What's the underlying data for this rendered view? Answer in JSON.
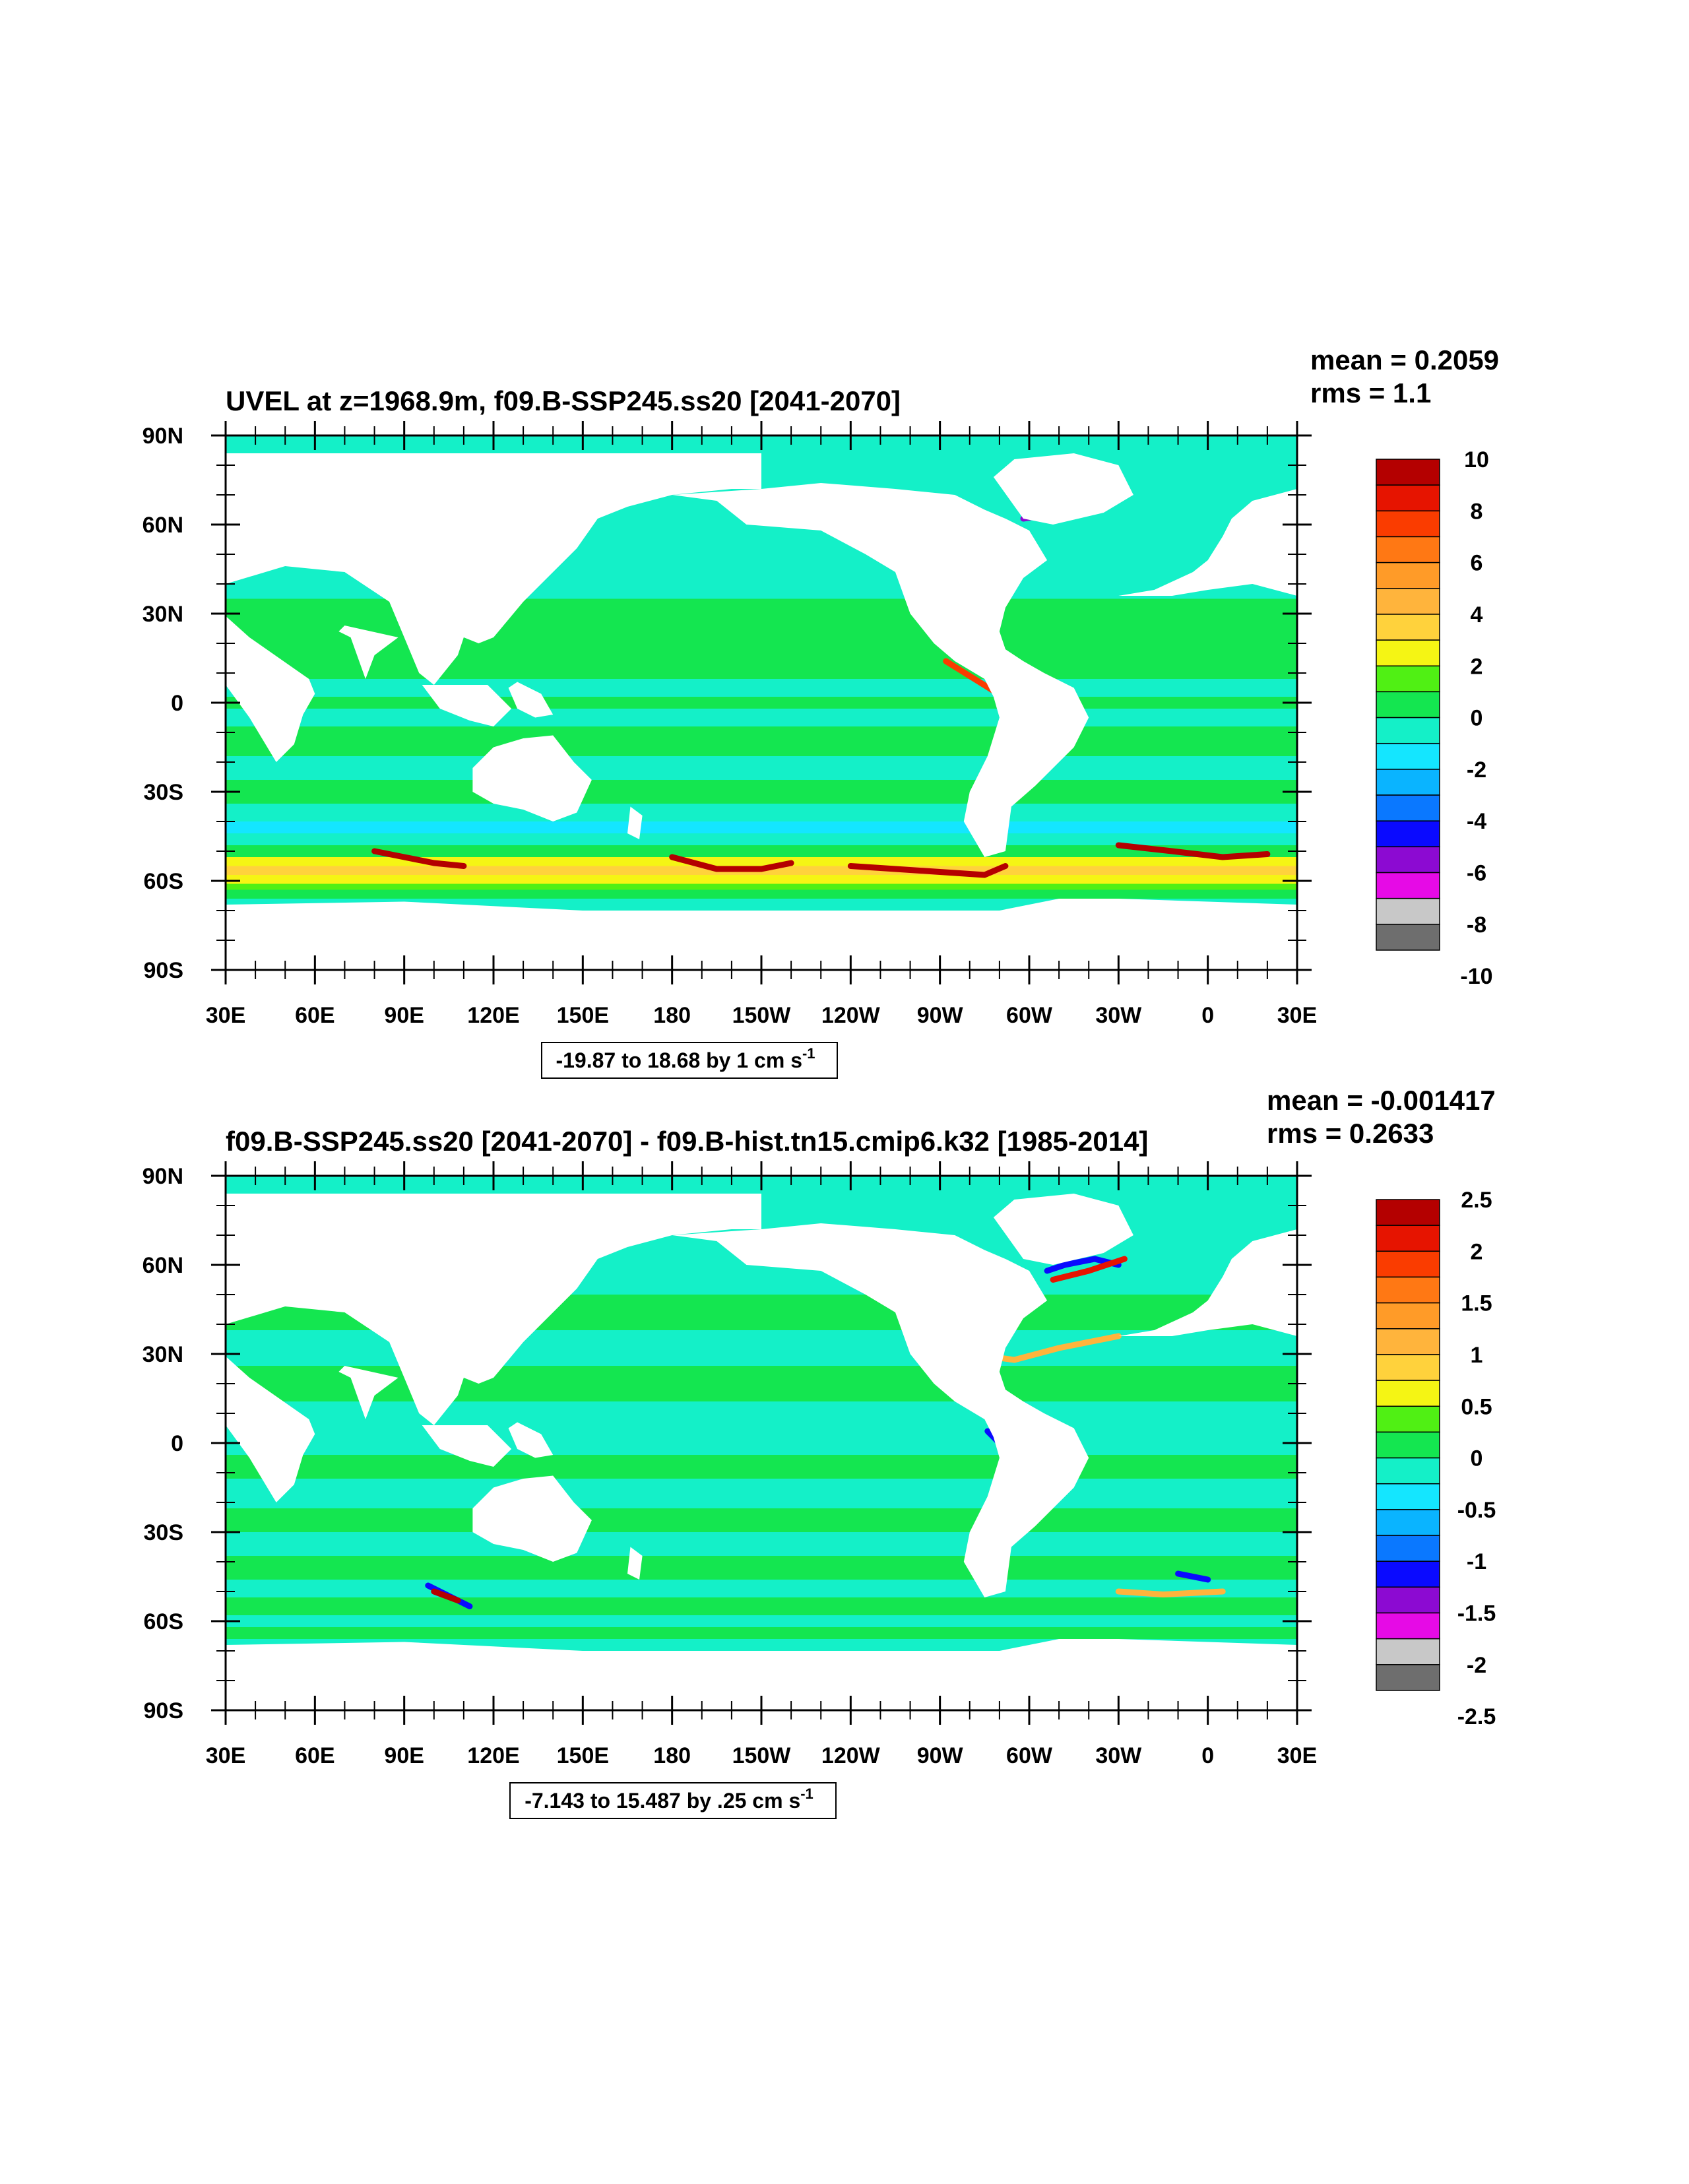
{
  "panels": [
    {
      "title": "UVEL at z=1968.9m, f09.B-SSP245.ss20 [2041-2070]",
      "mean": "mean = 0.2059",
      "rms": "rms = 1.1",
      "range": {
        "text": "-19.87 to 18.68 by 1 cm s",
        "sup": "-1"
      },
      "colorbar_labels": [
        "10",
        "8",
        "6",
        "4",
        "2",
        "0",
        "-2",
        "-4",
        "-6",
        "-8",
        "-10"
      ],
      "field": "absolute"
    },
    {
      "title": "f09.B-SSP245.ss20 [2041-2070] - f09.B-hist.tn15.cmip6.k32 [1985-2014]",
      "mean": "mean = -0.001417",
      "rms": "rms = 0.2633",
      "range": {
        "text": "-7.143 to 15.487 by .25 cm s",
        "sup": "-1"
      },
      "colorbar_labels": [
        "2.5",
        "2",
        "1.5",
        "1",
        "0.5",
        "0",
        "-0.5",
        "-1",
        "-1.5",
        "-2",
        "-2.5"
      ],
      "field": "difference"
    }
  ],
  "lat_labels": [
    "90N",
    "60N",
    "30N",
    "0",
    "30S",
    "60S",
    "90S"
  ],
  "lon_labels": [
    "30E",
    "60E",
    "90E",
    "120E",
    "150E",
    "180",
    "150W",
    "120W",
    "90W",
    "60W",
    "30W",
    "0",
    "30E"
  ],
  "colorbar_colors": [
    "#b40000",
    "#e61400",
    "#fa3c00",
    "#ff7814",
    "#ff9b28",
    "#ffb43c",
    "#ffd23c",
    "#f5f514",
    "#50f014",
    "#14e650",
    "#14f0c8",
    "#14e6ff",
    "#0ab4ff",
    "#0a78ff",
    "#0a0aff",
    "#8c0ad2",
    "#e60ae6",
    "#c8c8c8",
    "#6e6e6e"
  ],
  "colors": {
    "land": "#ffffff",
    "frame": "#000000"
  }
}
